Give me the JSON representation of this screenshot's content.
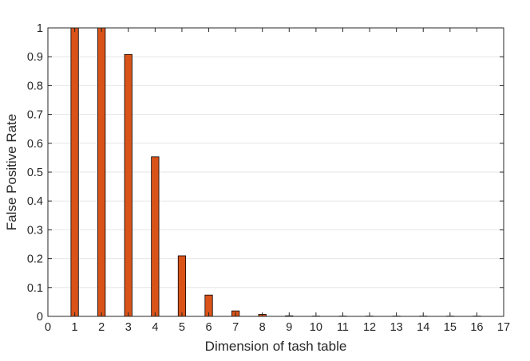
{
  "chart_data": {
    "type": "bar",
    "xlabel": "Dimension of tash table",
    "ylabel": "False Positive Rate",
    "xlim": [
      0,
      17
    ],
    "ylim": [
      0,
      1
    ],
    "x_ticks": [
      "0",
      "1",
      "2",
      "3",
      "4",
      "5",
      "6",
      "7",
      "8",
      "9",
      "10",
      "11",
      "12",
      "13",
      "14",
      "15",
      "16",
      "17"
    ],
    "y_ticks": [
      "0",
      "0.1",
      "0.2",
      "0.3",
      "0.4",
      "0.5",
      "0.6",
      "0.7",
      "0.8",
      "0.9",
      "1"
    ],
    "grid": "horizontal",
    "categories": [
      1,
      2,
      3,
      4,
      5,
      6,
      7,
      8,
      9,
      10,
      11,
      12,
      13,
      14,
      15,
      16
    ],
    "values": [
      1.0,
      1.0,
      0.908,
      0.553,
      0.21,
      0.074,
      0.019,
      0.007,
      0.002,
      0.001,
      0.001,
      0.001,
      0.001,
      0.001,
      0.001,
      0.001
    ],
    "bar_color": "#d95319",
    "bar_edge_color": "#000000"
  }
}
